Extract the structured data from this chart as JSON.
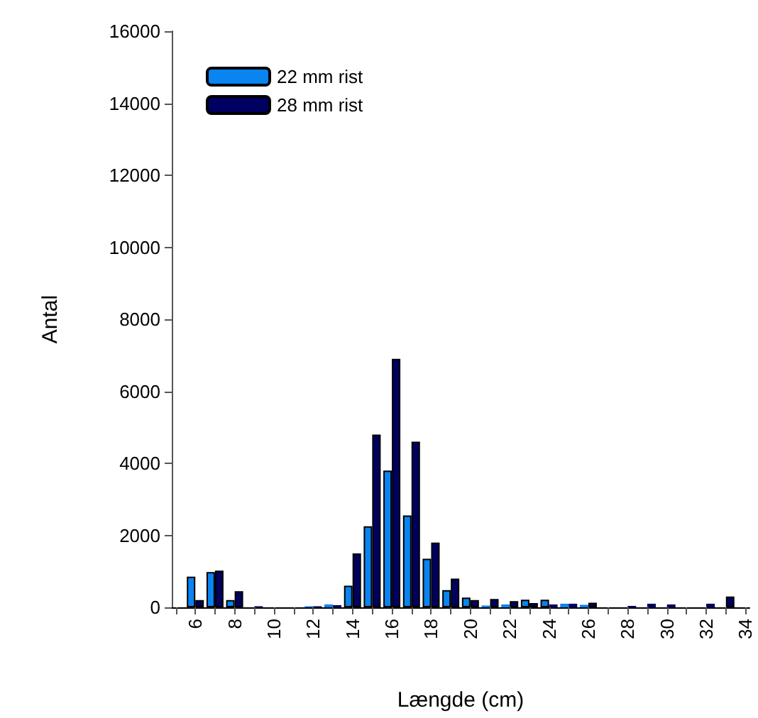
{
  "chart_data": {
    "type": "bar",
    "xlabel": "Længde (cm)",
    "ylabel": "Antal",
    "x": [
      6,
      7,
      8,
      9,
      10,
      11,
      12,
      13,
      14,
      15,
      16,
      17,
      18,
      19,
      20,
      21,
      22,
      23,
      24,
      25,
      26,
      27,
      28,
      29,
      30,
      31,
      32,
      33
    ],
    "series": [
      {
        "name": "22 mm rist",
        "color": "#0a84f0",
        "values": [
          850,
          980,
          200,
          0,
          0,
          0,
          30,
          80,
          600,
          2250,
          3800,
          2550,
          1350,
          480,
          270,
          50,
          80,
          210,
          210,
          100,
          70,
          0,
          0,
          0,
          0,
          0,
          0,
          0
        ]
      },
      {
        "name": "28 mm rist",
        "color": "#000060",
        "values": [
          200,
          1020,
          450,
          30,
          0,
          0,
          30,
          60,
          1500,
          4800,
          6900,
          4600,
          1800,
          800,
          200,
          230,
          170,
          120,
          80,
          100,
          130,
          0,
          40,
          100,
          80,
          0,
          100,
          300
        ]
      }
    ],
    "xlim": [
      4.8,
      34.2
    ],
    "xticks": [
      {
        "value": 5,
        "label": null
      },
      6,
      {
        "value": 7,
        "label": null
      },
      8,
      {
        "value": 9,
        "label": null
      },
      10,
      {
        "value": 11,
        "label": null
      },
      12,
      {
        "value": 13,
        "label": null
      },
      14,
      {
        "value": 15,
        "label": null
      },
      16,
      {
        "value": 17,
        "label": null
      },
      18,
      {
        "value": 19,
        "label": null
      },
      20,
      {
        "value": 21,
        "label": null
      },
      22,
      {
        "value": 23,
        "label": null
      },
      24,
      {
        "value": 25,
        "label": null
      },
      26,
      {
        "value": 27,
        "label": null
      },
      28,
      {
        "value": 29,
        "label": null
      },
      30,
      {
        "value": 31,
        "label": null
      },
      32,
      {
        "value": 33,
        "label": null
      },
      34
    ],
    "ylim": [
      0,
      16000
    ],
    "yticks": [
      0,
      2000,
      4000,
      6000,
      8000,
      10000,
      12000,
      14000,
      16000
    ],
    "grid": false,
    "legend": "top left"
  }
}
